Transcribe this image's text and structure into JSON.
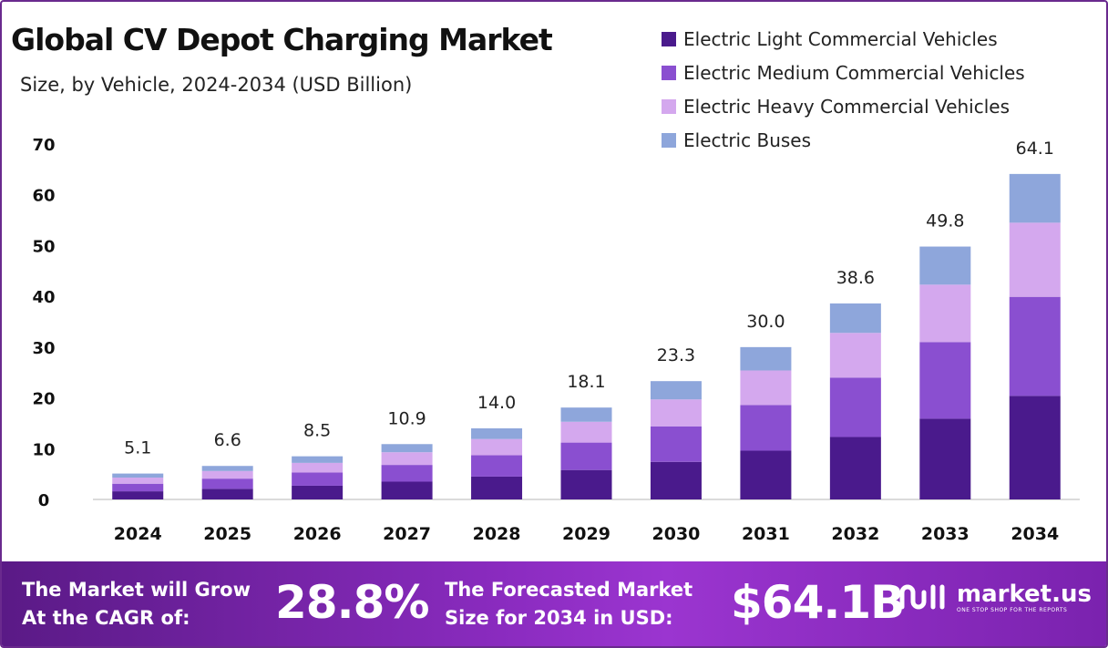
{
  "header": {
    "title": "Global CV Depot Charging Market",
    "subtitle": "Size, by Vehicle, 2024-2034 (USD Billion)"
  },
  "legend": [
    {
      "label": "Electric Light Commercial Vehicles",
      "color": "#4a1a8c"
    },
    {
      "label": "Electric Medium Commercial Vehicles",
      "color": "#8a4fd0"
    },
    {
      "label": "Electric Heavy Commercial Vehicles",
      "color": "#d4a8ee"
    },
    {
      "label": "Electric Buses",
      "color": "#8ea6db"
    }
  ],
  "chart_data": {
    "type": "bar",
    "stacked": true,
    "categories": [
      "2024",
      "2025",
      "2026",
      "2027",
      "2028",
      "2029",
      "2030",
      "2031",
      "2032",
      "2033",
      "2034"
    ],
    "series": [
      {
        "name": "Electric Light Commercial Vehicles",
        "color": "#4a1a8c",
        "values": [
          1.6,
          2.1,
          2.7,
          3.5,
          4.5,
          5.8,
          7.4,
          9.6,
          12.3,
          15.9,
          20.4
        ]
      },
      {
        "name": "Electric Medium Commercial Vehicles",
        "color": "#8a4fd0",
        "values": [
          1.5,
          2.0,
          2.6,
          3.3,
          4.2,
          5.4,
          7.0,
          9.0,
          11.7,
          15.1,
          19.5
        ]
      },
      {
        "name": "Electric Heavy Commercial Vehicles",
        "color": "#d4a8ee",
        "values": [
          1.2,
          1.5,
          1.9,
          2.5,
          3.2,
          4.1,
          5.3,
          6.8,
          8.8,
          11.3,
          14.6
        ]
      },
      {
        "name": "Electric Buses",
        "color": "#8ea6db",
        "values": [
          0.8,
          1.0,
          1.3,
          1.6,
          2.1,
          2.8,
          3.6,
          4.6,
          5.8,
          7.5,
          9.6
        ]
      }
    ],
    "totals": [
      "5.1",
      "6.6",
      "8.5",
      "10.9",
      "14.0",
      "18.1",
      "23.3",
      "30.0",
      "38.6",
      "49.8",
      "64.1"
    ],
    "y_ticks": [
      0,
      10,
      20,
      30,
      40,
      50,
      60,
      70
    ],
    "ylim": [
      0,
      70
    ],
    "grid": false,
    "legend_position": "top-right"
  },
  "banner": {
    "cagr_line1": "The Market will Grow",
    "cagr_line2": "At the CAGR of:",
    "cagr_value": "28.8%",
    "forecast_line1": "The Forecasted Market",
    "forecast_line2": "Size for 2034 in USD:",
    "forecast_value": "$64.1B",
    "brand_name": "market.us",
    "brand_tagline": "ONE STOP SHOP FOR THE REPORTS"
  }
}
